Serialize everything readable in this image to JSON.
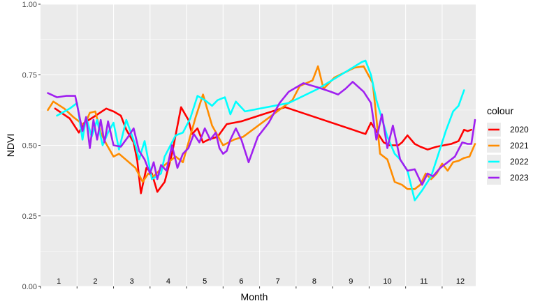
{
  "chart_data": {
    "type": "line",
    "xlabel": "Month",
    "ylabel": "NDVI",
    "ylim": [
      0,
      1
    ],
    "xlim": [
      0.5,
      12.42
    ],
    "yticks": [
      "0.00",
      "0.25",
      "0.50",
      "0.75",
      "1.00"
    ],
    "ytick_values": [
      0,
      0.25,
      0.5,
      0.75,
      1.0
    ],
    "month_labels": [
      "1",
      "2",
      "3",
      "4",
      "5",
      "6",
      "7",
      "8",
      "9",
      "10",
      "11",
      "12"
    ],
    "grid": true,
    "background": "#ebebeb",
    "legend": {
      "title": "colour",
      "position": "right"
    },
    "series": [
      {
        "name": "2020",
        "color": "#ff0000",
        "x": [
          0.9,
          1.3,
          1.55,
          1.7,
          1.95,
          2.3,
          2.5,
          2.7,
          2.85,
          3.05,
          3.15,
          3.25,
          3.4,
          3.55,
          3.7,
          3.9,
          4.1,
          4.35,
          4.55,
          4.65,
          4.8,
          4.95,
          5.1,
          5.35,
          5.6,
          6.0,
          7.2,
          9.4,
          9.55,
          9.9,
          10.05,
          10.3,
          10.4,
          10.55,
          10.75,
          10.9,
          11.1,
          11.35,
          11.75,
          11.95,
          12.1,
          12.2,
          12.3
        ],
        "y": [
          0.63,
          0.595,
          0.545,
          0.58,
          0.6,
          0.63,
          0.62,
          0.605,
          0.555,
          0.51,
          0.445,
          0.33,
          0.42,
          0.4,
          0.335,
          0.37,
          0.47,
          0.635,
          0.59,
          0.54,
          0.56,
          0.51,
          0.52,
          0.53,
          0.575,
          0.585,
          0.635,
          0.54,
          0.58,
          0.51,
          0.5,
          0.5,
          0.51,
          0.535,
          0.505,
          0.495,
          0.485,
          0.495,
          0.505,
          0.515,
          0.555,
          0.55,
          0.555
        ]
      },
      {
        "name": "2021",
        "color": "#ff8c00",
        "x": [
          0.7,
          0.85,
          1.15,
          1.4,
          1.7,
          1.85,
          2.0,
          2.15,
          2.3,
          2.5,
          2.65,
          3.1,
          3.3,
          3.45,
          3.6,
          3.9,
          4.2,
          4.4,
          4.75,
          4.95,
          5.2,
          5.5,
          5.8,
          6.05,
          7.4,
          7.6,
          7.95,
          8.1,
          8.25,
          8.55,
          9.1,
          9.35,
          9.6,
          9.8,
          10.0,
          10.2,
          10.4,
          10.55,
          10.75,
          10.9,
          11.05,
          11.2,
          11.35,
          11.5,
          11.65,
          11.8,
          11.95,
          12.1,
          12.25,
          12.4
        ],
        "y": [
          0.625,
          0.655,
          0.63,
          0.6,
          0.57,
          0.615,
          0.62,
          0.545,
          0.505,
          0.46,
          0.47,
          0.42,
          0.37,
          0.4,
          0.39,
          0.43,
          0.46,
          0.44,
          0.6,
          0.68,
          0.57,
          0.5,
          0.52,
          0.53,
          0.66,
          0.71,
          0.73,
          0.78,
          0.7,
          0.74,
          0.775,
          0.78,
          0.72,
          0.47,
          0.45,
          0.37,
          0.36,
          0.345,
          0.345,
          0.36,
          0.4,
          0.38,
          0.4,
          0.435,
          0.41,
          0.44,
          0.445,
          0.455,
          0.46,
          0.505
        ]
      },
      {
        "name": "2022",
        "color": "#00ffff",
        "x": [
          0.95,
          1.3,
          1.5,
          1.65,
          1.75,
          1.9,
          2.05,
          2.2,
          2.35,
          2.5,
          2.65,
          2.85,
          3.1,
          3.2,
          3.35,
          3.55,
          3.8,
          3.9,
          4.2,
          4.4,
          4.6,
          4.8,
          5.0,
          5.2,
          5.35,
          5.55,
          5.7,
          5.85,
          6.1,
          7.3,
          8.1,
          9.3,
          9.4,
          9.55,
          9.7,
          10.0,
          10.2,
          10.35,
          10.55,
          10.75,
          10.95,
          11.2,
          11.4,
          11.6,
          11.8,
          11.95,
          12.1
        ],
        "y": [
          0.605,
          0.63,
          0.65,
          0.52,
          0.6,
          0.53,
          0.59,
          0.5,
          0.545,
          0.58,
          0.485,
          0.59,
          0.5,
          0.45,
          0.515,
          0.38,
          0.4,
          0.46,
          0.535,
          0.545,
          0.595,
          0.675,
          0.66,
          0.64,
          0.66,
          0.67,
          0.61,
          0.655,
          0.62,
          0.65,
          0.7,
          0.795,
          0.8,
          0.75,
          0.66,
          0.53,
          0.47,
          0.45,
          0.41,
          0.305,
          0.34,
          0.39,
          0.47,
          0.55,
          0.62,
          0.64,
          0.695
        ]
      },
      {
        "name": "2023",
        "color": "#a020f0",
        "x": [
          0.7,
          0.95,
          1.2,
          1.45,
          1.65,
          1.75,
          1.85,
          1.95,
          2.05,
          2.15,
          2.25,
          2.35,
          2.5,
          2.7,
          2.9,
          3.05,
          3.2,
          3.35,
          3.5,
          3.6,
          3.7,
          3.8,
          3.95,
          4.1,
          4.25,
          4.4,
          4.55,
          4.7,
          4.85,
          5.0,
          5.15,
          5.3,
          5.4,
          5.5,
          5.6,
          5.7,
          5.85,
          6.0,
          6.2,
          6.45,
          6.75,
          7.05,
          7.3,
          7.7,
          8.1,
          8.45,
          8.65,
          8.85,
          9.05,
          9.35,
          9.55,
          9.7,
          9.85,
          10.0,
          10.15,
          10.35,
          10.55,
          10.75,
          10.95,
          11.1,
          11.25,
          11.45,
          11.65,
          11.85,
          12.05,
          12.2,
          12.3,
          12.4
        ],
        "y": [
          0.685,
          0.67,
          0.675,
          0.675,
          0.55,
          0.6,
          0.49,
          0.59,
          0.52,
          0.59,
          0.51,
          0.585,
          0.5,
          0.495,
          0.53,
          0.56,
          0.48,
          0.45,
          0.4,
          0.44,
          0.38,
          0.43,
          0.41,
          0.5,
          0.42,
          0.47,
          0.49,
          0.54,
          0.51,
          0.56,
          0.52,
          0.545,
          0.49,
          0.47,
          0.48,
          0.52,
          0.56,
          0.52,
          0.44,
          0.53,
          0.58,
          0.65,
          0.69,
          0.72,
          0.705,
          0.69,
          0.68,
          0.7,
          0.725,
          0.69,
          0.65,
          0.52,
          0.61,
          0.49,
          0.57,
          0.45,
          0.41,
          0.415,
          0.36,
          0.4,
          0.39,
          0.42,
          0.44,
          0.46,
          0.51,
          0.505,
          0.505,
          0.59
        ]
      }
    ]
  }
}
